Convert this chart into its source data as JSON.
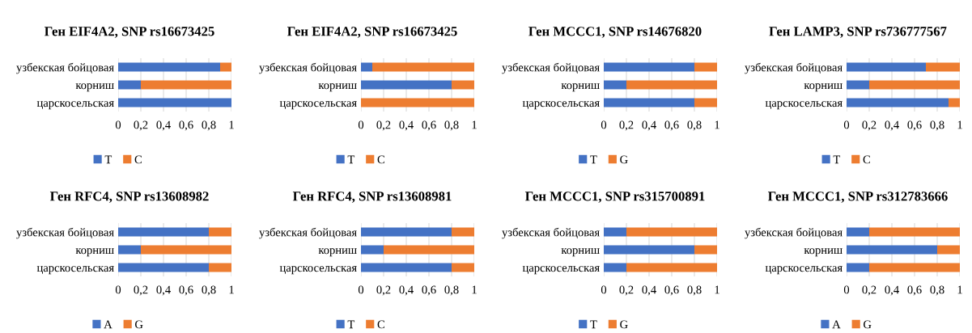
{
  "chart_data": [
    {
      "type": "bar",
      "orientation": "horizontal",
      "stacked": true,
      "title": "Ген EIF4A2, SNP rs16673425",
      "categories": [
        "узбекская бойцовая",
        "корниш",
        "царскосельская"
      ],
      "series": [
        {
          "name": "T",
          "color": "#4472c4",
          "values": [
            0.9,
            0.2,
            1.0
          ]
        },
        {
          "name": "C",
          "color": "#ed7d31",
          "values": [
            0.1,
            0.8,
            0
          ]
        }
      ],
      "xlim": [
        0,
        1
      ],
      "xticks": [
        0,
        {
          "value": 0.2,
          "label": "0,2"
        },
        {
          "value": 0.4,
          "label": "0,4"
        },
        {
          "value": 0.6,
          "label": "0,6"
        },
        {
          "value": 0.8,
          "label": "0,8"
        },
        1
      ],
      "grid": "x",
      "legend": "bottom"
    },
    {
      "type": "bar",
      "orientation": "horizontal",
      "stacked": true,
      "title": "Ген EIF4A2, SNP rs16673425",
      "categories": [
        "узбекская бойцовая",
        "корниш",
        "царскосельская"
      ],
      "series": [
        {
          "name": "T",
          "color": "#4472c4",
          "values": [
            0.1,
            0.8,
            0
          ]
        },
        {
          "name": "C",
          "color": "#ed7d31",
          "values": [
            0.9,
            0.2,
            1.0
          ]
        }
      ],
      "xlim": [
        0,
        1
      ],
      "xticks": [
        0,
        {
          "value": 0.2,
          "label": "0,2"
        },
        {
          "value": 0.4,
          "label": "0,4"
        },
        {
          "value": 0.6,
          "label": "0,6"
        },
        {
          "value": 0.8,
          "label": "0,8"
        },
        1
      ],
      "grid": "x",
      "legend": "bottom"
    },
    {
      "type": "bar",
      "orientation": "horizontal",
      "stacked": true,
      "title": "Ген MCCC1, SNP rs14676820",
      "categories": [
        "узбекская бойцовая",
        "корниш",
        "царскосельская"
      ],
      "series": [
        {
          "name": "T",
          "color": "#4472c4",
          "values": [
            0.8,
            0.2,
            0.8
          ]
        },
        {
          "name": "G",
          "color": "#ed7d31",
          "values": [
            0.2,
            0.8,
            0.2
          ]
        }
      ],
      "xlim": [
        0,
        1
      ],
      "xticks": [
        0,
        {
          "value": 0.2,
          "label": "0,2"
        },
        {
          "value": 0.4,
          "label": "0,4"
        },
        {
          "value": 0.6,
          "label": "0,6"
        },
        {
          "value": 0.8,
          "label": "0,8"
        },
        1
      ],
      "grid": "x",
      "legend": "bottom"
    },
    {
      "type": "bar",
      "orientation": "horizontal",
      "stacked": true,
      "title": "Ген LAMP3, SNP rs736777567",
      "categories": [
        "узбекская бойцовая",
        "корниш",
        "царскосельская"
      ],
      "series": [
        {
          "name": "T",
          "color": "#4472c4",
          "values": [
            0.7,
            0.2,
            0.9
          ]
        },
        {
          "name": "C",
          "color": "#ed7d31",
          "values": [
            0.3,
            0.8,
            0.1
          ]
        }
      ],
      "xlim": [
        0,
        1
      ],
      "xticks": [
        0,
        {
          "value": 0.2,
          "label": "0,2"
        },
        {
          "value": 0.4,
          "label": "0,4"
        },
        {
          "value": 0.6,
          "label": "0,6"
        },
        {
          "value": 0.8,
          "label": "0,8"
        },
        1
      ],
      "grid": "x",
      "legend": "bottom"
    },
    {
      "type": "bar",
      "orientation": "horizontal",
      "stacked": true,
      "title": "Ген RFC4, SNP rs13608982",
      "categories": [
        "узбекская бойцовая",
        "корниш",
        "царскосельская"
      ],
      "series": [
        {
          "name": "A",
          "color": "#4472c4",
          "values": [
            0.8,
            0.2,
            0.8
          ]
        },
        {
          "name": "G",
          "color": "#ed7d31",
          "values": [
            0.2,
            0.8,
            0.2
          ]
        }
      ],
      "xlim": [
        0,
        1
      ],
      "xticks": [
        0,
        {
          "value": 0.2,
          "label": "0,2"
        },
        {
          "value": 0.4,
          "label": "0,4"
        },
        {
          "value": 0.6,
          "label": "0,6"
        },
        {
          "value": 0.8,
          "label": "0,8"
        },
        1
      ],
      "grid": "x",
      "legend": "bottom"
    },
    {
      "type": "bar",
      "orientation": "horizontal",
      "stacked": true,
      "title": "Ген RFC4, SNP rs13608981",
      "categories": [
        "узбекская бойцовая",
        "корниш",
        "царскосельская"
      ],
      "series": [
        {
          "name": "T",
          "color": "#4472c4",
          "values": [
            0.8,
            0.2,
            0.8
          ]
        },
        {
          "name": "C",
          "color": "#ed7d31",
          "values": [
            0.2,
            0.8,
            0.2
          ]
        }
      ],
      "xlim": [
        0,
        1
      ],
      "xticks": [
        0,
        {
          "value": 0.2,
          "label": "0,2"
        },
        {
          "value": 0.4,
          "label": "0,4"
        },
        {
          "value": 0.6,
          "label": "0,6"
        },
        {
          "value": 0.8,
          "label": "0,8"
        },
        1
      ],
      "grid": "x",
      "legend": "bottom"
    },
    {
      "type": "bar",
      "orientation": "horizontal",
      "stacked": true,
      "title": "Ген MCCC1, SNP rs315700891",
      "categories": [
        "узбекская бойцовая",
        "корниш",
        "царскосельская"
      ],
      "series": [
        {
          "name": "T",
          "color": "#4472c4",
          "values": [
            0.2,
            0.8,
            0.2
          ]
        },
        {
          "name": "G",
          "color": "#ed7d31",
          "values": [
            0.8,
            0.2,
            0.8
          ]
        }
      ],
      "xlim": [
        0,
        1
      ],
      "xticks": [
        0,
        {
          "value": 0.2,
          "label": "0,2"
        },
        {
          "value": 0.4,
          "label": "0,4"
        },
        {
          "value": 0.6,
          "label": "0,6"
        },
        {
          "value": 0.8,
          "label": "0,8"
        },
        1
      ],
      "grid": "x",
      "legend": "bottom"
    },
    {
      "type": "bar",
      "orientation": "horizontal",
      "stacked": true,
      "title": "Ген MCCC1, SNP rs312783666",
      "categories": [
        "узбекская бойцовая",
        "корниш",
        "царскосельская"
      ],
      "series": [
        {
          "name": "A",
          "color": "#4472c4",
          "values": [
            0.2,
            0.8,
            0.2
          ]
        },
        {
          "name": "G",
          "color": "#ed7d31",
          "values": [
            0.8,
            0.2,
            0.8
          ]
        }
      ],
      "xlim": [
        0,
        1
      ],
      "xticks": [
        0,
        {
          "value": 0.2,
          "label": "0,2"
        },
        {
          "value": 0.4,
          "label": "0,4"
        },
        {
          "value": 0.6,
          "label": "0,6"
        },
        {
          "value": 0.8,
          "label": "0,8"
        },
        1
      ],
      "grid": "x",
      "legend": "bottom"
    }
  ]
}
